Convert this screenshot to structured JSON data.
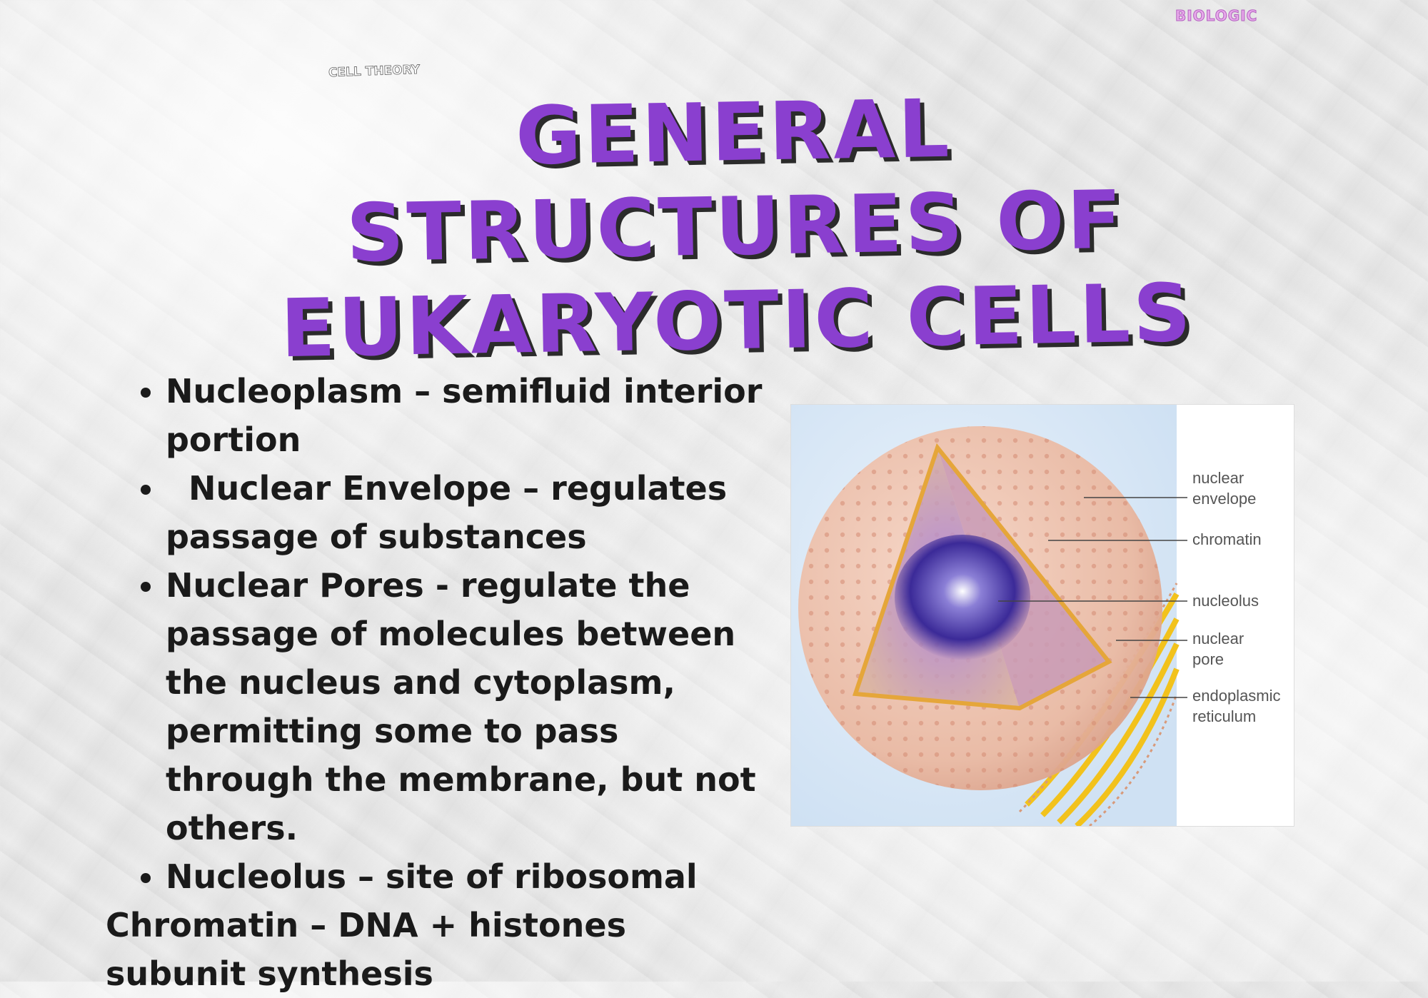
{
  "brand": "BIOLOGIC",
  "tag": "CELL THEORY",
  "title": "GENERAL STRUCTURES OF EUKARYOTIC CELLS",
  "bullets": [
    "Nucleoplasm – semifluid interior portion",
    "  Nuclear Envelope – regulates passage of substances",
    "Nuclear Pores - regulate the passage of molecules between the nucleus and cytoplasm, permitting some to pass through the membrane, but not others.",
    "Nucleolus – site of ribosomal"
  ],
  "trailing_text": "Chromatin – DNA + histones subunit synthesis",
  "figure_labels": {
    "nuclear_envelope": "nuclear\nenvelope",
    "chromatin": "chromatin",
    "nucleolus": "nucleolus",
    "nuclear_pore": "nuclear\npore",
    "endoplasmic_reticulum": "endoplasmic\nreticulum"
  },
  "colors": {
    "title": "#8a3fcf",
    "title_shadow": "#2b2b2b",
    "text": "#1a1a1a",
    "brand": "#e7a9ea"
  }
}
